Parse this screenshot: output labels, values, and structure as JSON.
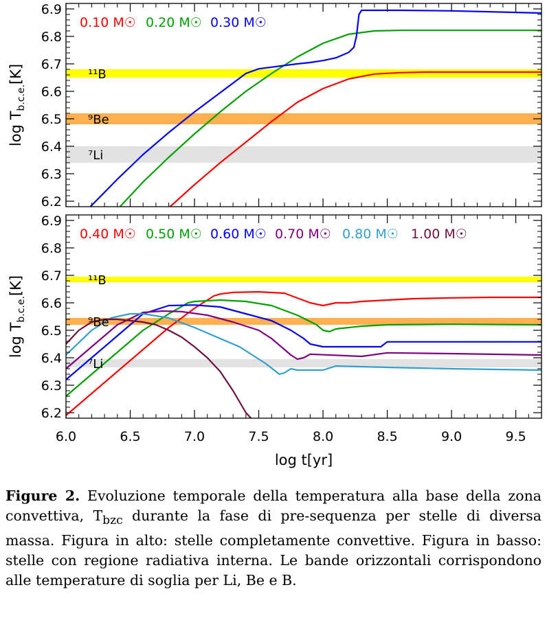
{
  "chart_data": [
    {
      "type": "line",
      "panel": "top",
      "ylabel": "log T_b.c.e.[K]",
      "xlim": [
        6.0,
        9.7
      ],
      "ylim": [
        6.18,
        6.92
      ],
      "yticks": [
        "6.2",
        "6.3",
        "6.4",
        "6.5",
        "6.6",
        "6.7",
        "6.8",
        "6.9"
      ],
      "bands": [
        {
          "name": "11B",
          "label": "¹¹B",
          "y": [
            6.65,
            6.68
          ],
          "color": "#ffff00"
        },
        {
          "name": "9Be",
          "label": "⁹Be",
          "y": [
            6.48,
            6.52
          ],
          "color": "#ffb050"
        },
        {
          "name": "7Li",
          "label": "⁷Li",
          "y": [
            6.34,
            6.4
          ],
          "color": "#e2e2e2"
        }
      ],
      "series": [
        {
          "name": "0.10 M☉",
          "color": "#ff0000",
          "x": [
            6.81,
            7.0,
            7.2,
            7.4,
            7.6,
            7.8,
            8.0,
            8.2,
            8.4,
            8.6,
            8.8,
            9.0,
            9.3,
            9.7
          ],
          "y": [
            6.18,
            6.26,
            6.34,
            6.415,
            6.49,
            6.56,
            6.61,
            6.645,
            6.663,
            6.668,
            6.67,
            6.67,
            6.67,
            6.67
          ]
        },
        {
          "name": "0.20 M☉",
          "color": "#00a000",
          "x": [
            6.42,
            6.6,
            6.8,
            7.0,
            7.2,
            7.4,
            7.6,
            7.8,
            8.0,
            8.2,
            8.4,
            8.6,
            8.8,
            9.0,
            9.7
          ],
          "y": [
            6.18,
            6.27,
            6.36,
            6.445,
            6.525,
            6.6,
            6.665,
            6.725,
            6.775,
            6.808,
            6.82,
            6.822,
            6.822,
            6.822,
            6.822
          ]
        },
        {
          "name": "0.30 M☉",
          "color": "#0000ff",
          "x": [
            6.19,
            6.4,
            6.6,
            6.8,
            7.0,
            7.2,
            7.4,
            7.5,
            7.6,
            7.7,
            7.8,
            7.9,
            8.0,
            8.1,
            8.2,
            8.24,
            8.26,
            8.28,
            8.3,
            8.6,
            9.0,
            9.7
          ],
          "y": [
            6.18,
            6.28,
            6.37,
            6.45,
            6.525,
            6.595,
            6.665,
            6.682,
            6.688,
            6.694,
            6.7,
            6.705,
            6.712,
            6.722,
            6.742,
            6.76,
            6.8,
            6.88,
            6.895,
            6.895,
            6.893,
            6.885
          ]
        }
      ]
    },
    {
      "type": "line",
      "panel": "bottom",
      "xlabel": "log t[yr]",
      "ylabel": "log T_b.c.e.[K]",
      "xlim": [
        6.0,
        9.7
      ],
      "ylim": [
        6.18,
        6.92
      ],
      "xticks": [
        "6.0",
        "6.5",
        "7.0",
        "7.5",
        "8.0",
        "8.5",
        "9.0",
        "9.5"
      ],
      "yticks": [
        "6.2",
        "6.3",
        "6.4",
        "6.5",
        "6.6",
        "6.7",
        "6.8",
        "6.9"
      ],
      "bands": [
        {
          "name": "11B",
          "label": "¹¹B",
          "y": [
            6.675,
            6.695
          ],
          "color": "#ffff00"
        },
        {
          "name": "9Be",
          "label": "⁹Be",
          "y": [
            6.52,
            6.545
          ],
          "color": "#ffb050"
        },
        {
          "name": "7Li",
          "label": "⁷Li",
          "y": [
            6.365,
            6.395
          ],
          "color": "#e2e2e2"
        }
      ],
      "series": [
        {
          "name": "0.40 M☉",
          "color": "#ff0000",
          "x": [
            6.0,
            6.2,
            6.4,
            6.6,
            6.8,
            7.0,
            7.15,
            7.2,
            7.3,
            7.5,
            7.7,
            7.9,
            8.0,
            8.1,
            8.2,
            8.3,
            8.5,
            8.7,
            9.0,
            9.3,
            9.7
          ],
          "y": [
            6.19,
            6.27,
            6.35,
            6.43,
            6.51,
            6.58,
            6.625,
            6.632,
            6.638,
            6.64,
            6.635,
            6.6,
            6.59,
            6.6,
            6.6,
            6.605,
            6.61,
            6.615,
            6.618,
            6.62,
            6.62
          ]
        },
        {
          "name": "0.50 M☉",
          "color": "#00a000",
          "x": [
            6.0,
            6.2,
            6.4,
            6.6,
            6.8,
            6.95,
            7.0,
            7.2,
            7.4,
            7.6,
            7.8,
            7.95,
            8.0,
            8.05,
            8.1,
            8.3,
            8.5,
            9.0,
            9.7
          ],
          "y": [
            6.26,
            6.34,
            6.42,
            6.5,
            6.56,
            6.6,
            6.605,
            6.61,
            6.605,
            6.59,
            6.555,
            6.52,
            6.5,
            6.495,
            6.505,
            6.515,
            6.52,
            6.522,
            6.52
          ]
        },
        {
          "name": "0.60 M☉",
          "color": "#0000ff",
          "x": [
            6.0,
            6.2,
            6.4,
            6.6,
            6.8,
            7.0,
            7.2,
            7.4,
            7.6,
            7.75,
            7.85,
            7.9,
            7.95,
            8.0,
            8.05,
            8.1,
            8.45,
            8.5,
            9.0,
            9.7
          ],
          "y": [
            6.32,
            6.4,
            6.48,
            6.56,
            6.59,
            6.592,
            6.585,
            6.56,
            6.535,
            6.5,
            6.47,
            6.45,
            6.445,
            6.44,
            6.44,
            6.44,
            6.44,
            6.458,
            6.458,
            6.458
          ]
        },
        {
          "name": "0.70 M☉",
          "color": "#800080",
          "x": [
            6.0,
            6.2,
            6.4,
            6.6,
            6.75,
            6.9,
            7.1,
            7.3,
            7.5,
            7.6,
            7.7,
            7.75,
            7.8,
            7.85,
            7.9,
            8.3,
            8.5,
            9.0,
            9.7
          ],
          "y": [
            6.36,
            6.44,
            6.52,
            6.565,
            6.57,
            6.568,
            6.555,
            6.53,
            6.5,
            6.47,
            6.43,
            6.41,
            6.395,
            6.4,
            6.413,
            6.405,
            6.418,
            6.415,
            6.41
          ]
        },
        {
          "name": "0.80 M☉",
          "color": "#30a0d0",
          "x": [
            6.0,
            6.2,
            6.35,
            6.5,
            6.6,
            6.8,
            7.0,
            7.2,
            7.35,
            7.45,
            7.55,
            7.62,
            7.66,
            7.7,
            7.75,
            7.8,
            8.0,
            8.1,
            8.5,
            9.0,
            9.7
          ],
          "y": [
            6.41,
            6.5,
            6.545,
            6.56,
            6.56,
            6.545,
            6.51,
            6.47,
            6.44,
            6.41,
            6.38,
            6.355,
            6.34,
            6.345,
            6.36,
            6.355,
            6.355,
            6.37,
            6.365,
            6.36,
            6.355
          ]
        },
        {
          "name": "1.00 M☉",
          "color": "#701040",
          "x": [
            6.0,
            6.1,
            6.2,
            6.3,
            6.4,
            6.5,
            6.6,
            6.7,
            6.8,
            6.9,
            7.0,
            7.1,
            7.2,
            7.3,
            7.35,
            7.4,
            7.44
          ],
          "y": [
            6.45,
            6.5,
            6.53,
            6.54,
            6.54,
            6.535,
            6.53,
            6.52,
            6.5,
            6.475,
            6.44,
            6.4,
            6.35,
            6.28,
            6.24,
            6.2,
            6.18
          ]
        }
      ]
    }
  ],
  "caption": {
    "figure_label": "Figure 2.",
    "text": " Evoluzione temporale della temperatura alla base della zona convettiva, T",
    "subscript": "bzc",
    "text_after": " durante la fase di pre-sequenza per stelle di diversa massa. Figura in alto: stelle completamente convettive. Figura in basso: stelle con regione radiativa interna. Le bande orizzontali corrispondono alle temperature di soglia per Li, Be e B."
  }
}
